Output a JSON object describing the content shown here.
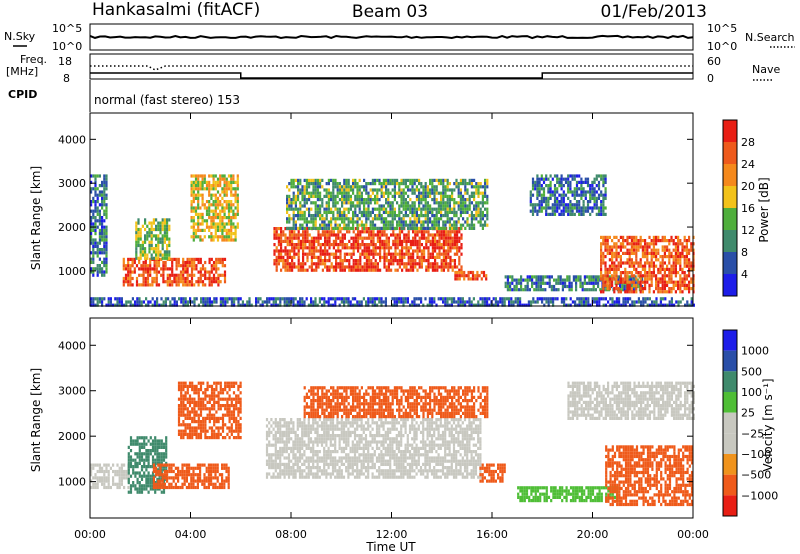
{
  "header": {
    "station": "Hankasalmi (fitACF)",
    "beam": "Beam 03",
    "date": "01/Feb/2013"
  },
  "top_strips": {
    "nsky_label": "N.Sky",
    "nsearch_label": "N.Search",
    "noise_ticks_top": "10^5",
    "noise_ticks_bottom": "10^0",
    "freq_label": "Freq.",
    "freq_unit": "[MHz]",
    "freq_ticks": [
      "18",
      "8"
    ],
    "nave_label": "Nave",
    "nave_ticks": [
      "60",
      "0"
    ],
    "cpid_label": "CPID",
    "cpid_text": "normal (fast stereo) 153"
  },
  "colors": {
    "power_scale": [
      "#1d1de8",
      "#2a4fa8",
      "#3f8a6c",
      "#4fae3c",
      "#f2c21a",
      "#f5891c",
      "#ee5a1c",
      "#e81e14"
    ],
    "velocity_scale": [
      "#e81e14",
      "#ef5a1a",
      "#f0931c",
      "#c8c8c0",
      "#c8c8c0",
      "#4fbe36",
      "#3f8a6c",
      "#2a4fa8",
      "#1d1de8"
    ],
    "ground_scatter": "#c8c8c0"
  },
  "chart_data": [
    {
      "type": "heatmap",
      "panel": "power",
      "xlabel": "",
      "ylabel": "Slant Range [km]",
      "x_ticks": [
        "00:00",
        "04:00",
        "08:00",
        "12:00",
        "16:00",
        "20:00",
        "00:00"
      ],
      "xlim": [
        0,
        24
      ],
      "ylim": [
        200,
        4600
      ],
      "y_ticks": [
        1000,
        2000,
        3000,
        4000
      ],
      "colorbar": {
        "label": "Power [dB]",
        "ticks": [
          4,
          8,
          12,
          16,
          20,
          24,
          28
        ],
        "range": [
          0,
          32
        ]
      },
      "regions": [
        {
          "t0": 1.3,
          "t1": 5.4,
          "r0": 700,
          "r1": 1300,
          "value": 26
        },
        {
          "t0": 1.8,
          "t1": 3.2,
          "r0": 1300,
          "r1": 2200,
          "value": 14
        },
        {
          "t0": 4.0,
          "t1": 5.9,
          "r0": 1700,
          "r1": 3200,
          "value": 18
        },
        {
          "t0": 0.0,
          "t1": 0.7,
          "r0": 900,
          "r1": 3200,
          "value": 8
        },
        {
          "t0": 7.3,
          "t1": 14.8,
          "r0": 1000,
          "r1": 2000,
          "value": 28
        },
        {
          "t0": 7.8,
          "t1": 15.8,
          "r0": 2000,
          "r1": 3100,
          "value": 12
        },
        {
          "t0": 14.5,
          "t1": 15.8,
          "r0": 800,
          "r1": 1000,
          "value": 26
        },
        {
          "t0": 16.5,
          "t1": 22.0,
          "r0": 600,
          "r1": 900,
          "value": 9
        },
        {
          "t0": 17.5,
          "t1": 20.5,
          "r0": 2300,
          "r1": 3200,
          "value": 8
        },
        {
          "t0": 20.3,
          "t1": 24.0,
          "r0": 500,
          "r1": 1800,
          "value": 26
        },
        {
          "t0": 0.0,
          "t1": 24.0,
          "r0": 200,
          "r1": 400,
          "value": 6
        }
      ]
    },
    {
      "type": "heatmap",
      "panel": "velocity",
      "xlabel": "Time UT",
      "ylabel": "Slant Range [km]",
      "x_ticks": [
        "00:00",
        "04:00",
        "08:00",
        "12:00",
        "16:00",
        "20:00",
        "00:00"
      ],
      "xlim": [
        0,
        24
      ],
      "ylim": [
        200,
        4600
      ],
      "y_ticks": [
        1000,
        2000,
        3000,
        4000
      ],
      "colorbar": {
        "label": "Velocity [m s⁻¹]",
        "tick_labels": [
          "1000",
          "500",
          "100",
          "25",
          "−25",
          "−100",
          "−500",
          "−1000"
        ]
      },
      "regions": [
        {
          "t0": 0.0,
          "t1": 1.5,
          "r0": 900,
          "r1": 1400,
          "value": "ground"
        },
        {
          "t0": 1.5,
          "t1": 3.0,
          "r0": 800,
          "r1": 2000,
          "value": 120
        },
        {
          "t0": 2.5,
          "t1": 5.5,
          "r0": 900,
          "r1": 1400,
          "value": -150
        },
        {
          "t0": 3.5,
          "t1": 6.0,
          "r0": 2000,
          "r1": 3200,
          "value": -200
        },
        {
          "t0": 7.0,
          "t1": 15.5,
          "r0": 1100,
          "r1": 2400,
          "value": "ground"
        },
        {
          "t0": 8.5,
          "t1": 15.8,
          "r0": 2400,
          "r1": 3100,
          "value": -150
        },
        {
          "t0": 15.5,
          "t1": 16.5,
          "r0": 1000,
          "r1": 1400,
          "value": -200
        },
        {
          "t0": 17.0,
          "t1": 21.0,
          "r0": 600,
          "r1": 900,
          "value": 80
        },
        {
          "t0": 19.0,
          "t1": 24.0,
          "r0": 2400,
          "r1": 3200,
          "value": "ground"
        },
        {
          "t0": 20.5,
          "t1": 24.0,
          "r0": 500,
          "r1": 1800,
          "value": -300
        }
      ]
    }
  ]
}
